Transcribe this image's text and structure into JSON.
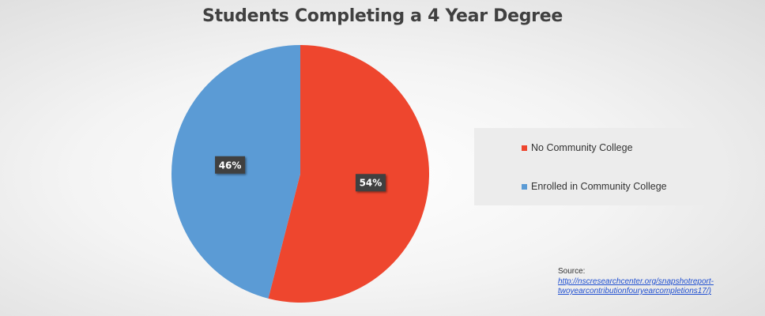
{
  "chart_data": {
    "type": "pie",
    "title": "Students Completing a 4 Year Degree",
    "slices": [
      {
        "label": "No Community College",
        "value": 54,
        "display": "54%",
        "color": "#ee462e"
      },
      {
        "label": "Enrolled in Community College",
        "value": 46,
        "display": "46%",
        "color": "#5b9bd5"
      }
    ],
    "legend_position": "right",
    "source_label": "Source:",
    "source_url_line1": "http://nscresearchcenter.org/snapshotreport-",
    "source_url_line2": "twoyearcontributionfouryearcompletions17/)"
  }
}
